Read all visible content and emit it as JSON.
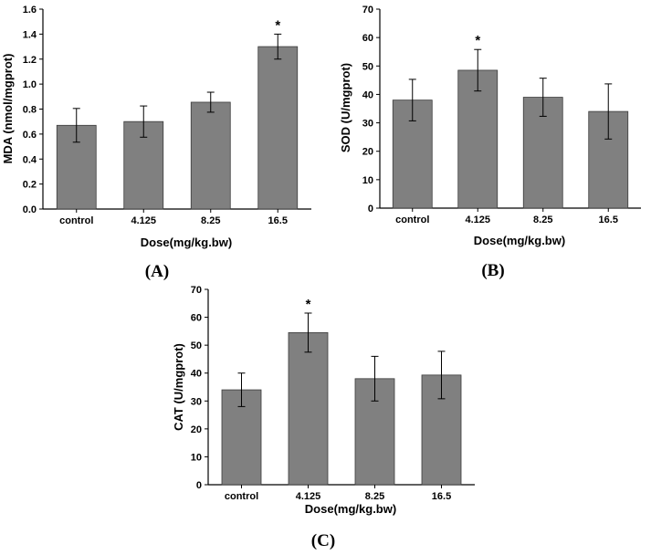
{
  "bar_color": "#808080",
  "chart_data": [
    {
      "type": "bar",
      "panel": "A",
      "categories": [
        "control",
        "4.125",
        "8.25",
        "16.5"
      ],
      "values": [
        0.67,
        0.7,
        0.855,
        1.3
      ],
      "errors": [
        0.135,
        0.125,
        0.08,
        0.1
      ],
      "significant": [
        false,
        false,
        false,
        true
      ],
      "xlabel": "Dose(mg/kg.bw)",
      "ylabel": "MDA (nmol/mgprot)",
      "ylim": [
        0,
        1.6
      ],
      "yticks": [
        0.0,
        0.2,
        0.4,
        0.6,
        0.8,
        1.0,
        1.2,
        1.4,
        1.6
      ],
      "ytick_labels": [
        "0.0",
        "0.2",
        "0.4",
        "0.6",
        "0.8",
        "1.0",
        "1.2",
        "1.4",
        "1.6"
      ],
      "annotation": "*",
      "label_text": "A"
    },
    {
      "type": "bar",
      "panel": "B",
      "categories": [
        "control",
        "4.125",
        "8.25",
        "16.5"
      ],
      "values": [
        38.0,
        48.5,
        39.0,
        34.0
      ],
      "errors": [
        7.3,
        7.3,
        6.7,
        9.7
      ],
      "significant": [
        false,
        true,
        false,
        false
      ],
      "xlabel": "Dose(mg/kg.bw)",
      "ylabel": "SOD (U/mgprot)",
      "ylim": [
        0,
        70
      ],
      "yticks": [
        0,
        10,
        20,
        30,
        40,
        50,
        60,
        70
      ],
      "ytick_labels": [
        "0",
        "10",
        "20",
        "30",
        "40",
        "50",
        "60",
        "70"
      ],
      "annotation": "*",
      "label_text": "B"
    },
    {
      "type": "bar",
      "panel": "C",
      "categories": [
        "control",
        "4.125",
        "8.25",
        "16.5"
      ],
      "values": [
        34.0,
        54.5,
        38.0,
        39.3
      ],
      "errors": [
        6.0,
        7.0,
        8.0,
        8.5
      ],
      "significant": [
        false,
        true,
        false,
        false
      ],
      "xlabel": "Dose(mg/kg.bw)",
      "ylabel": "CAT (U/mgprot)",
      "ylim": [
        0,
        70
      ],
      "yticks": [
        0,
        10,
        20,
        30,
        40,
        50,
        60,
        70
      ],
      "ytick_labels": [
        "0",
        "10",
        "20",
        "30",
        "40",
        "50",
        "60",
        "70"
      ],
      "annotation": "*",
      "label_text": "C"
    }
  ]
}
